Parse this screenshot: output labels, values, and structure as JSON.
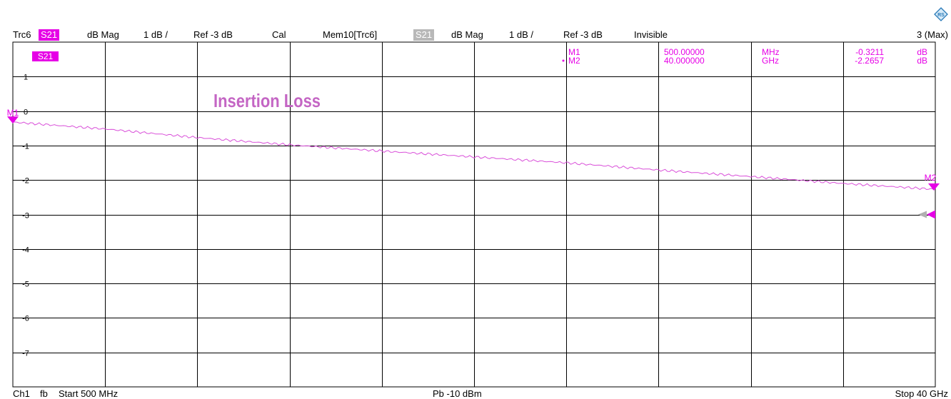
{
  "header": {
    "trace": "Trc6",
    "param": "S21",
    "format": "dB Mag",
    "scale": "1 dB /",
    "ref": "Ref -3 dB",
    "cal": "Cal",
    "mem_trace": "Mem10[Trc6]",
    "mem_param": "S21",
    "mem_format": "dB Mag",
    "mem_scale": "1 dB /",
    "mem_ref": "Ref -3 dB",
    "mem_state": "Invisible",
    "window": "3 (Max)"
  },
  "footer": {
    "channel": "Ch1",
    "mode": "fb",
    "start": "Start  500 MHz",
    "power": "Pb  -10 dBm",
    "stop": "Stop  40 GHz"
  },
  "colors": {
    "trace": "#d94fd9",
    "marker": "#e600e6",
    "grid": "#000000",
    "ref_gray": "#b0b0b0"
  },
  "logo_icon": "rohde-schwarz-logo-icon",
  "chart_data": {
    "type": "line",
    "trace_label": "S21",
    "annotation": "Insertion Loss",
    "x_unit": "GHz",
    "xlim": [
      0.5,
      40
    ],
    "ylim": [
      -8,
      2
    ],
    "y_ticks": [
      1,
      0,
      -1,
      -2,
      -3,
      -4,
      -5,
      -6,
      -7
    ],
    "y_tick_labels": [
      "1",
      "0",
      "-1",
      "-2",
      "-3",
      "-4",
      "-5",
      "-6",
      "-7"
    ],
    "reference_level": -3,
    "grid": true,
    "series": [
      {
        "x": [
          0.5,
          4.45,
          8.4,
          12.35,
          16.3,
          20.25,
          24.2,
          28.15,
          32.1,
          36.05,
          40.0
        ],
        "y": [
          -0.32,
          -0.52,
          -0.77,
          -0.98,
          -1.16,
          -1.33,
          -1.5,
          -1.71,
          -1.9,
          -2.1,
          -2.27
        ]
      }
    ],
    "markers": [
      {
        "name": "M1",
        "x_display": "500.00000",
        "x_unit": "MHz",
        "y_display": "-0.3211",
        "y_unit": "dB",
        "x": 0.5,
        "y": -0.3211
      },
      {
        "name": "M2",
        "x_display": "40.000000",
        "x_unit": "GHz",
        "y_display": "-2.2657",
        "y_unit": "dB",
        "x": 40.0,
        "y": -2.2657
      }
    ],
    "active_marker": "M2"
  }
}
